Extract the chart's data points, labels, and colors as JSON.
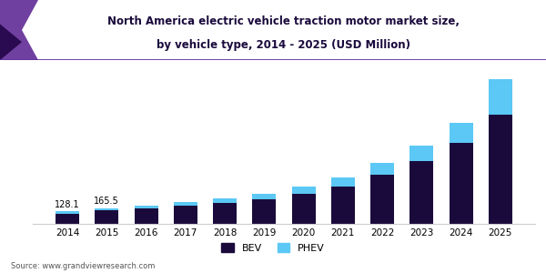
{
  "title_line1": "North America electric vehicle traction motor market size,",
  "title_line2": "by vehicle type, 2014 - 2025 (USD Million)",
  "years": [
    2014,
    2015,
    2016,
    2017,
    2018,
    2019,
    2020,
    2021,
    2022,
    2023,
    2024,
    2025
  ],
  "bev": [
    108,
    143,
    162,
    188,
    220,
    258,
    315,
    390,
    510,
    650,
    840,
    1130
  ],
  "phev": [
    20,
    22,
    28,
    34,
    42,
    55,
    68,
    90,
    120,
    160,
    210,
    370
  ],
  "color_bev": "#1a0a3c",
  "color_phev": "#5bc8f5",
  "bar_width": 0.6,
  "annotation_2014": "128.1",
  "annotation_2015": "165.5",
  "legend_bev": "BEV",
  "legend_phev": "PHEV",
  "source_text": "Source: www.grandviewresearch.com",
  "ylim": [
    0,
    1700
  ],
  "title_bg": "#ece8f5",
  "title_border": "#6030a0",
  "corner_color1": "#7040a0",
  "corner_color2": "#2a0a50"
}
